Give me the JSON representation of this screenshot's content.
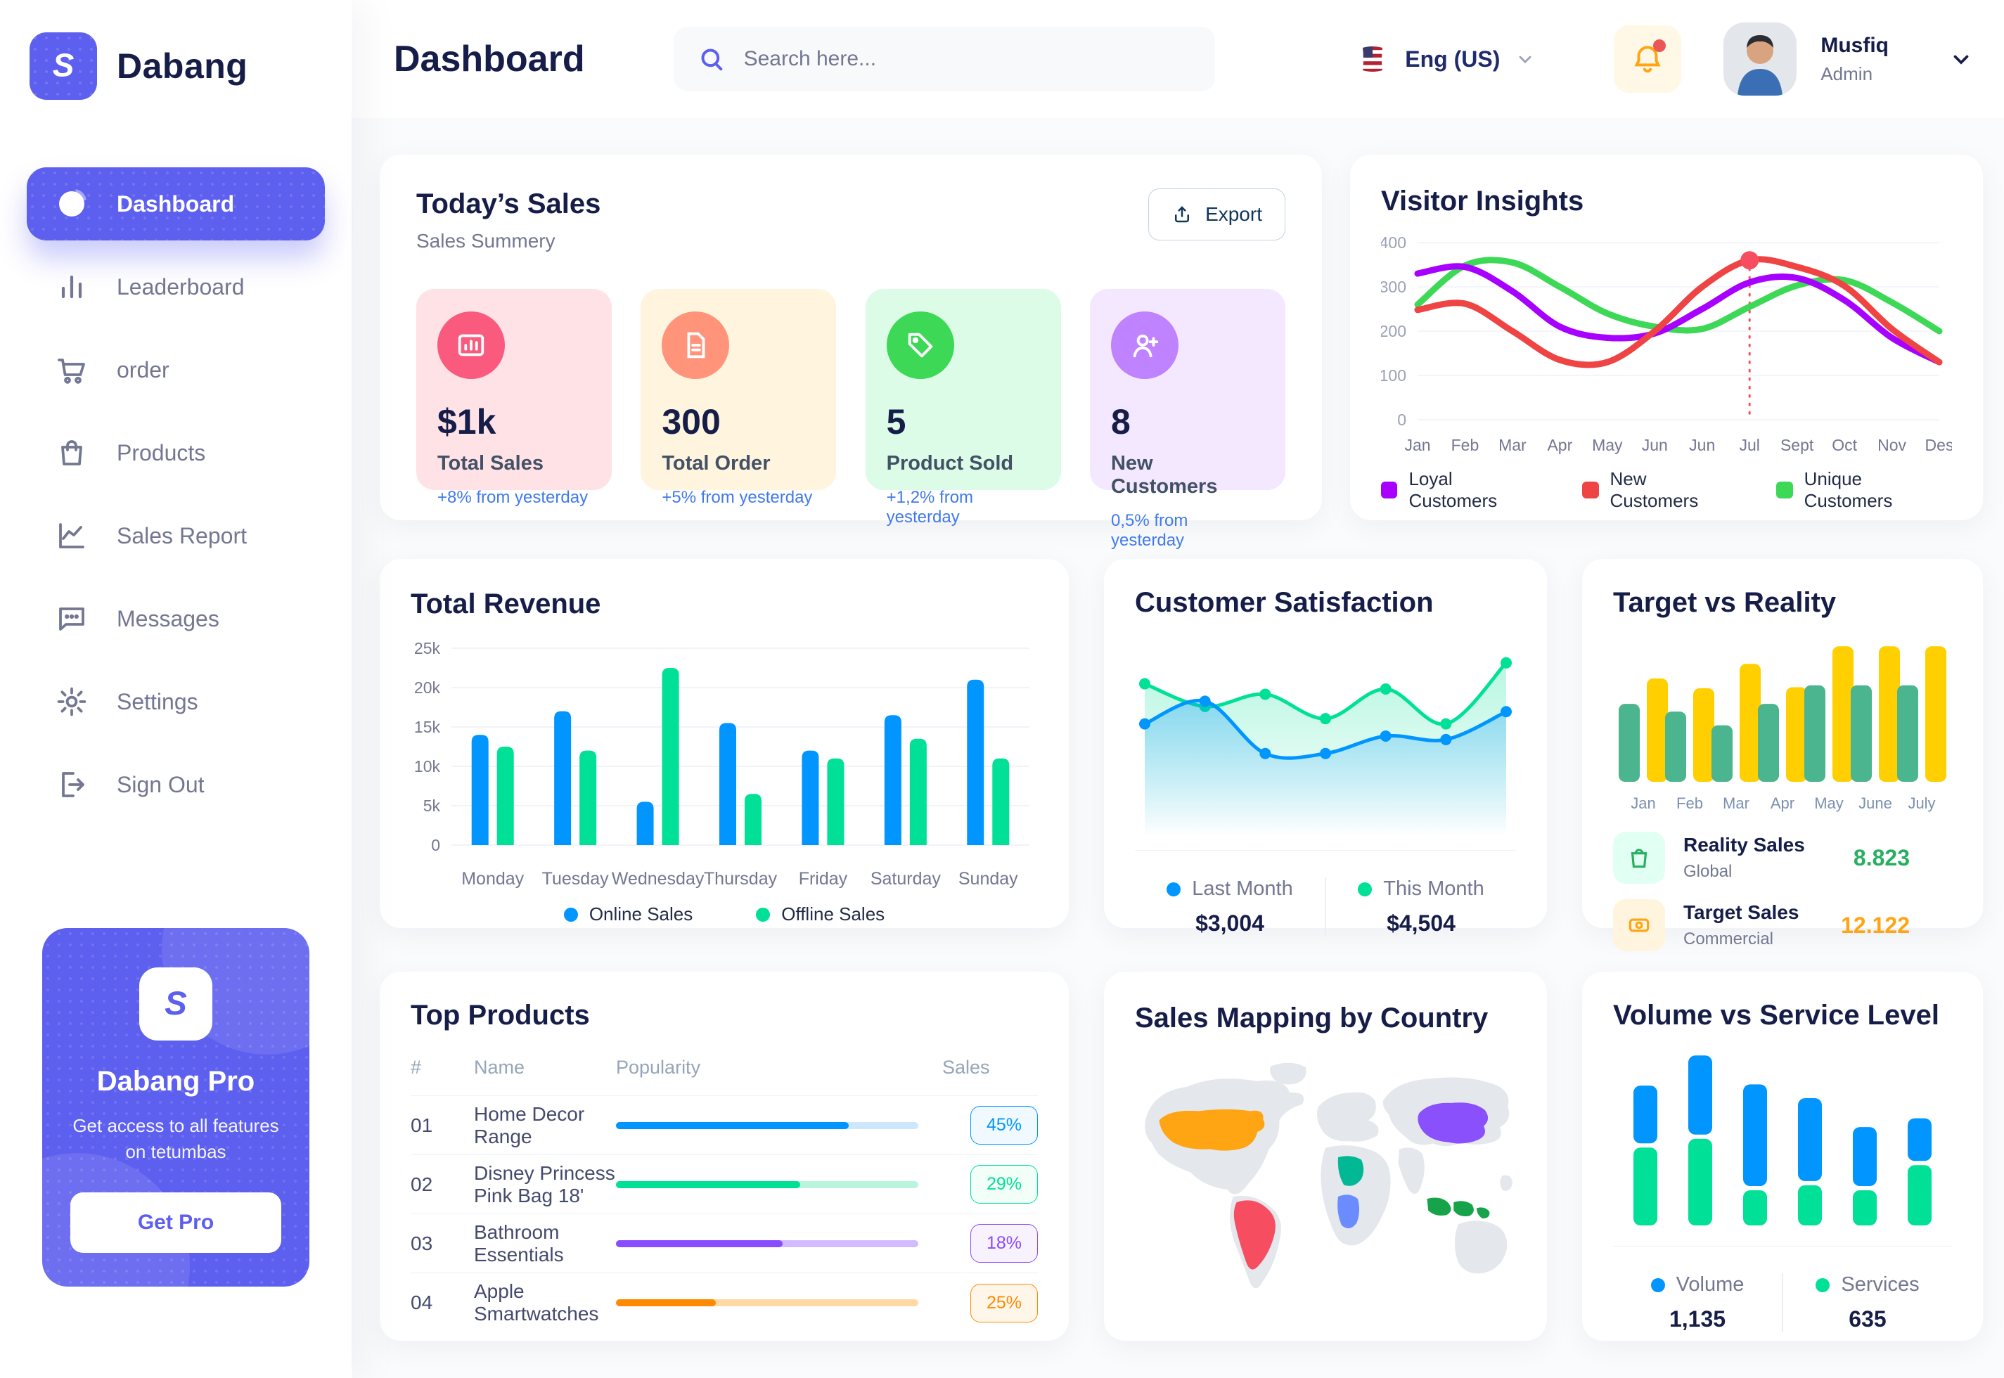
{
  "brand": {
    "name": "Dabang"
  },
  "sidebar": {
    "items": [
      {
        "label": "Dashboard",
        "icon": "pie-icon",
        "active": true
      },
      {
        "label": "Leaderboard",
        "icon": "bars-icon",
        "active": false
      },
      {
        "label": "order",
        "icon": "cart-icon",
        "active": false
      },
      {
        "label": "Products",
        "icon": "bag-icon",
        "active": false
      },
      {
        "label": "Sales Report",
        "icon": "line-chart-icon",
        "active": false
      },
      {
        "label": "Messages",
        "icon": "message-icon",
        "active": false
      },
      {
        "label": "Settings",
        "icon": "gear-icon",
        "active": false
      },
      {
        "label": "Sign Out",
        "icon": "sign-out-icon",
        "active": false
      }
    ],
    "pro": {
      "title": "Dabang Pro",
      "description": "Get access to all features on tetumbas",
      "button": "Get Pro"
    }
  },
  "header": {
    "title": "Dashboard",
    "search_placeholder": "Search here...",
    "language": "Eng (US)",
    "user": {
      "name": "Musfiq",
      "role": "Admin"
    }
  },
  "todays_sales": {
    "title": "Today’s Sales",
    "subtitle": "Sales Summery",
    "export_label": "Export",
    "cards": [
      {
        "value": "$1k",
        "label": "Total Sales",
        "delta": "+8% from yesterday",
        "bg": "#FFE2E5",
        "icon_bg": "#FA5A7D",
        "icon": "stat-chart-icon"
      },
      {
        "value": "300",
        "label": "Total Order",
        "delta": "+5% from yesterday",
        "bg": "#FFF4DE",
        "icon_bg": "#FF947A",
        "icon": "stat-file-icon"
      },
      {
        "value": "5",
        "label": "Product Sold",
        "delta": "+1,2% from yesterday",
        "bg": "#DCFCE7",
        "icon_bg": "#3CD856",
        "icon": "stat-tag-icon"
      },
      {
        "value": "8",
        "label": "New Customers",
        "delta": "0,5% from yesterday",
        "bg": "#F3E8FF",
        "icon_bg": "#BF83FF",
        "icon": "stat-user-plus-icon"
      }
    ]
  },
  "top_products": {
    "title": "Top Products",
    "columns": [
      "#",
      "Name",
      "Popularity",
      "Sales"
    ],
    "rows": [
      {
        "num": "01",
        "name": "Home Decor Range",
        "sales": "45%",
        "fill_pct": 77,
        "color": "#0095FF",
        "track": "#CDE7FF",
        "badge_bg": "#F0F9FF"
      },
      {
        "num": "02",
        "name": "Disney Princess Pink Bag 18'",
        "sales": "29%",
        "fill_pct": 61,
        "color": "#00E096",
        "track": "#B9F5DC",
        "badge_bg": "#F2FFF9"
      },
      {
        "num": "03",
        "name": "Bathroom Essentials",
        "sales": "18%",
        "fill_pct": 55,
        "color": "#884DFF",
        "track": "#D3BBFF",
        "badge_bg": "#F8F2FF"
      },
      {
        "num": "04",
        "name": "Apple Smartwatches",
        "sales": "25%",
        "fill_pct": 33,
        "color": "#FF8900",
        "track": "#FFD9A3",
        "badge_bg": "#FFF6EA"
      }
    ]
  },
  "sales_mapping": {
    "title": "Sales Mapping by Country",
    "countries": [
      {
        "name": "United States",
        "color": "#FFA412"
      },
      {
        "name": "Brazil",
        "color": "#F64E60"
      },
      {
        "name": "Saudi Arabia",
        "color": "#00B894"
      },
      {
        "name": "DR Congo",
        "color": "#6B8CFF"
      },
      {
        "name": "China",
        "color": "#8950FC"
      },
      {
        "name": "Indonesia",
        "color": "#16A34A"
      }
    ]
  },
  "chart_data": [
    {
      "type": "line",
      "title": "Visitor Insights",
      "categories": [
        "Jan",
        "Feb",
        "Mar",
        "Apr",
        "May",
        "Jun",
        "Jun",
        "Jul",
        "Sept",
        "Oct",
        "Nov",
        "Des"
      ],
      "ylim": [
        0,
        400
      ],
      "yticks": [
        0,
        100,
        200,
        300,
        400
      ],
      "grid": true,
      "legend_position": "bottom",
      "series": [
        {
          "name": "Loyal Customers",
          "color": "#A700FF",
          "values": [
            330,
            345,
            290,
            210,
            185,
            195,
            250,
            310,
            320,
            270,
            185,
            130
          ]
        },
        {
          "name": "New Customers",
          "color": "#EF4444",
          "values": [
            248,
            262,
            200,
            135,
            130,
            200,
            300,
            360,
            345,
            302,
            205,
            130
          ]
        },
        {
          "name": "Unique Customers",
          "color": "#3CD856",
          "values": [
            260,
            348,
            355,
            300,
            240,
            210,
            205,
            255,
            303,
            315,
            265,
            200
          ]
        }
      ],
      "highlight": {
        "series": "New Customers",
        "index": 7,
        "value": 360,
        "color": "#F64E60"
      }
    },
    {
      "type": "bar",
      "title": "Total Revenue",
      "categories": [
        "Monday",
        "Tuesday",
        "Wednesday",
        "Thursday",
        "Friday",
        "Saturday",
        "Sunday"
      ],
      "ylim": [
        0,
        25
      ],
      "ytick_labels": [
        "0",
        "5k",
        "10k",
        "15k",
        "20k",
        "25k"
      ],
      "yticks": [
        0,
        5,
        10,
        15,
        20,
        25
      ],
      "grid": true,
      "legend_position": "bottom",
      "series": [
        {
          "name": "Online Sales",
          "color": "#0095FF",
          "values": [
            14,
            17,
            5.5,
            15.5,
            12,
            16.5,
            21
          ]
        },
        {
          "name": "Offline Sales",
          "color": "#00E096",
          "values": [
            12.5,
            12,
            22.5,
            6.5,
            11,
            13.5,
            11
          ]
        }
      ]
    },
    {
      "type": "area",
      "title": "Customer Satisfaction",
      "ylim": [
        0,
        100
      ],
      "grid": false,
      "legend_position": "bottom",
      "series": [
        {
          "name": "This Month",
          "color": "#00E096",
          "total": "$4,504",
          "values": [
            78,
            65,
            72,
            58,
            75,
            55,
            90
          ]
        },
        {
          "name": "Last Month",
          "color": "#0095FF",
          "total": "$3,004",
          "values": [
            55,
            68,
            38,
            38,
            48,
            46,
            62
          ]
        }
      ]
    },
    {
      "type": "bar",
      "title": "Target vs Reality",
      "categories": [
        "Jan",
        "Feb",
        "Mar",
        "Apr",
        "May",
        "June",
        "July"
      ],
      "ylim": [
        0,
        15
      ],
      "grid": false,
      "series": [
        {
          "name": "Reality Sales",
          "color": "#4AB58E",
          "values": [
            8,
            7.2,
            5.8,
            8,
            9.9,
            9.9,
            9.9
          ]
        },
        {
          "name": "Target Sales",
          "color": "#FFCF00",
          "values": [
            10.6,
            9.6,
            12.1,
            9.7,
            13.9,
            13.9,
            13.9
          ]
        }
      ],
      "legend": [
        {
          "name": "Reality Sales",
          "sub": "Global",
          "value": "8.823",
          "value_color": "#27AE60",
          "icon_bg": "#E2FFF3",
          "icon": "bag-green-icon"
        },
        {
          "name": "Target Sales",
          "sub": "Commercial",
          "value": "12.122",
          "value_color": "#FFA412",
          "icon_bg": "#FFF4DE",
          "icon": "ticket-orange-icon"
        }
      ]
    },
    {
      "type": "stacked-bar",
      "title": "Volume vs Service Level",
      "ylim": [
        0,
        700
      ],
      "grid": false,
      "legend_position": "bottom",
      "series": [
        {
          "name": "Volume",
          "color": "#0095FF",
          "total": "1,135",
          "values": [
            230,
            315,
            405,
            330,
            235,
            170
          ]
        },
        {
          "name": "Services",
          "color": "#00E096",
          "total": "635",
          "values": [
            310,
            345,
            140,
            160,
            140,
            240
          ]
        }
      ]
    }
  ]
}
